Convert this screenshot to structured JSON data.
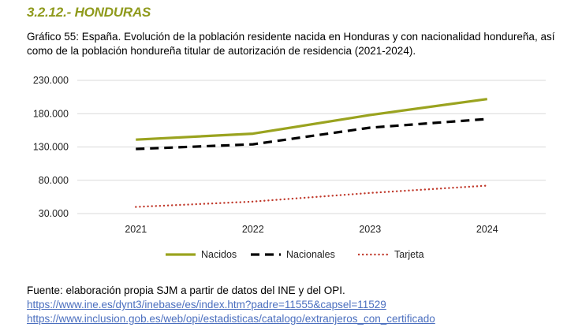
{
  "section": {
    "title": "3.2.12.- HONDURAS"
  },
  "caption": "Gráfico 55: España. Evolución de la población residente nacida en Honduras y con nacionalidad hondureña, así como de la población hondureña titular de autorización de residencia (2021-2024).",
  "chart_data": {
    "type": "line",
    "x": [
      "2021",
      "2022",
      "2023",
      "2024"
    ],
    "y_ticks": [
      "230.000",
      "180.000",
      "130.000",
      "80.000",
      "30.000"
    ],
    "y_tick_values": [
      230000,
      180000,
      130000,
      80000,
      30000
    ],
    "ylim": [
      30000,
      230000
    ],
    "grid": "horizontal",
    "legend_position": "bottom",
    "series": [
      {
        "name": "Nacidos",
        "values": [
          141000,
          150000,
          178000,
          202000
        ],
        "color": "#9aa31f",
        "style": "solid"
      },
      {
        "name": "Nacionales",
        "values": [
          127000,
          134000,
          159000,
          172000
        ],
        "color": "#000000",
        "style": "dashed"
      },
      {
        "name": "Tarjeta",
        "values": [
          40000,
          48000,
          61000,
          72000
        ],
        "color": "#c0392b",
        "style": "dotted"
      }
    ]
  },
  "source": {
    "text": "Fuente: elaboración propia SJM a partir de datos del INE y del OPI.",
    "links": [
      "https://www.ine.es/dynt3/inebase/es/index.htm?padre=11555&capsel=11529",
      "https://www.inclusion.gob.es/web/opi/estadisticas/catalogo/extranjeros_con_certificado"
    ]
  }
}
